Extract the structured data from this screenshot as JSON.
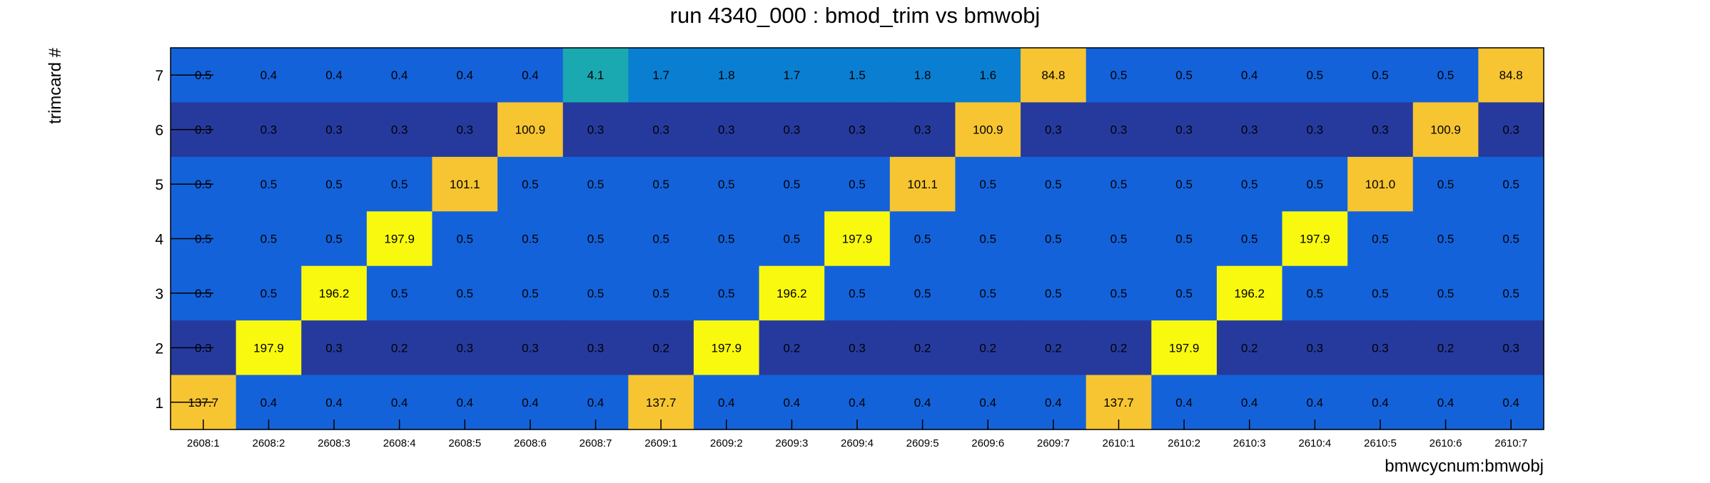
{
  "chart_data": {
    "type": "heatmap",
    "title": "run 4340_000 : bmod_trim vs bmwobj",
    "xlabel": "bmwcycnum:bmwobj",
    "ylabel": "trimcard #",
    "x_categories": [
      "2608:1",
      "2608:2",
      "2608:3",
      "2608:4",
      "2608:5",
      "2608:6",
      "2608:7",
      "2609:1",
      "2609:2",
      "2609:3",
      "2609:4",
      "2609:5",
      "2609:6",
      "2609:7",
      "2610:1",
      "2610:2",
      "2610:3",
      "2610:4",
      "2610:5",
      "2610:6",
      "2610:7"
    ],
    "y_categories": [
      "7",
      "6",
      "5",
      "4",
      "3",
      "2",
      "1"
    ],
    "values": [
      [
        0.5,
        0.4,
        0.4,
        0.4,
        0.4,
        0.4,
        4.1,
        1.7,
        1.8,
        1.7,
        1.5,
        1.8,
        1.6,
        84.8,
        0.5,
        0.5,
        0.4,
        0.5,
        0.5,
        0.5,
        84.8
      ],
      [
        0.3,
        0.3,
        0.3,
        0.3,
        0.3,
        100.9,
        0.3,
        0.3,
        0.3,
        0.3,
        0.3,
        0.3,
        100.9,
        0.3,
        0.3,
        0.3,
        0.3,
        0.3,
        0.3,
        100.9,
        0.3
      ],
      [
        0.5,
        0.5,
        0.5,
        0.5,
        101.1,
        0.5,
        0.5,
        0.5,
        0.5,
        0.5,
        0.5,
        101.1,
        0.5,
        0.5,
        0.5,
        0.5,
        0.5,
        0.5,
        101.0,
        0.5,
        0.5
      ],
      [
        0.5,
        0.5,
        0.5,
        197.9,
        0.5,
        0.5,
        0.5,
        0.5,
        0.5,
        0.5,
        197.9,
        0.5,
        0.5,
        0.5,
        0.5,
        0.5,
        0.5,
        197.9,
        0.5,
        0.5,
        0.5
      ],
      [
        0.5,
        0.5,
        196.2,
        0.5,
        0.5,
        0.5,
        0.5,
        0.5,
        0.5,
        196.2,
        0.5,
        0.5,
        0.5,
        0.5,
        0.5,
        0.5,
        196.2,
        0.5,
        0.5,
        0.5,
        0.5
      ],
      [
        0.3,
        197.9,
        0.3,
        0.2,
        0.3,
        0.3,
        0.3,
        0.2,
        197.9,
        0.2,
        0.3,
        0.2,
        0.2,
        0.2,
        0.2,
        197.9,
        0.2,
        0.3,
        0.3,
        0.2,
        0.3
      ],
      [
        137.7,
        0.4,
        0.4,
        0.4,
        0.4,
        0.4,
        0.4,
        137.7,
        0.4,
        0.4,
        0.4,
        0.4,
        0.4,
        0.4,
        137.7,
        0.4,
        0.4,
        0.4,
        0.4,
        0.4,
        0.4
      ]
    ],
    "cell_labels": [
      [
        "0.5",
        "0.4",
        "0.4",
        "0.4",
        "0.4",
        "0.4",
        "4.1",
        "1.7",
        "1.8",
        "1.7",
        "1.5",
        "1.8",
        "1.6",
        "84.8",
        "0.5",
        "0.5",
        "0.4",
        "0.5",
        "0.5",
        "0.5",
        "84.8"
      ],
      [
        "0.3",
        "0.3",
        "0.3",
        "0.3",
        "0.3",
        "100.9",
        "0.3",
        "0.3",
        "0.3",
        "0.3",
        "0.3",
        "0.3",
        "100.9",
        "0.3",
        "0.3",
        "0.3",
        "0.3",
        "0.3",
        "0.3",
        "100.9",
        "0.3"
      ],
      [
        "0.5",
        "0.5",
        "0.5",
        "0.5",
        "101.1",
        "0.5",
        "0.5",
        "0.5",
        "0.5",
        "0.5",
        "0.5",
        "101.1",
        "0.5",
        "0.5",
        "0.5",
        "0.5",
        "0.5",
        "0.5",
        "101.0",
        "0.5",
        "0.5"
      ],
      [
        "0.5",
        "0.5",
        "0.5",
        "197.9",
        "0.5",
        "0.5",
        "0.5",
        "0.5",
        "0.5",
        "0.5",
        "197.9",
        "0.5",
        "0.5",
        "0.5",
        "0.5",
        "0.5",
        "0.5",
        "197.9",
        "0.5",
        "0.5",
        "0.5"
      ],
      [
        "0.5",
        "0.5",
        "196.2",
        "0.5",
        "0.5",
        "0.5",
        "0.5",
        "0.5",
        "0.5",
        "196.2",
        "0.5",
        "0.5",
        "0.5",
        "0.5",
        "0.5",
        "0.5",
        "196.2",
        "0.5",
        "0.5",
        "0.5",
        "0.5"
      ],
      [
        "0.3",
        "197.9",
        "0.3",
        "0.2",
        "0.3",
        "0.3",
        "0.3",
        "0.2",
        "197.9",
        "0.2",
        "0.3",
        "0.2",
        "0.2",
        "0.2",
        "0.2",
        "197.9",
        "0.2",
        "0.3",
        "0.3",
        "0.2",
        "0.3"
      ],
      [
        "137.7",
        "0.4",
        "0.4",
        "0.4",
        "0.4",
        "0.4",
        "0.4",
        "137.7",
        "0.4",
        "0.4",
        "0.4",
        "0.4",
        "0.4",
        "0.4",
        "137.7",
        "0.4",
        "0.4",
        "0.4",
        "0.4",
        "0.4",
        "0.4"
      ]
    ],
    "color_scale": "parula",
    "colors": {
      "low": "#263a9e",
      "mid_low": "#1462da",
      "mid": "#0a7fd2",
      "teal": "#1aa9b0",
      "orange": "#f7c531",
      "high": "#f9f90f"
    },
    "grid": false,
    "legend": "none"
  }
}
